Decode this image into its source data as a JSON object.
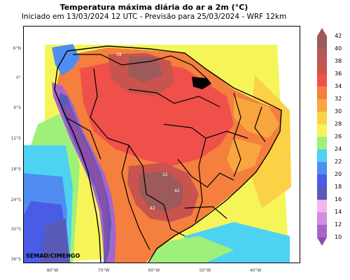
{
  "header": {
    "title": "Temperatura máxima diária do ar a 2m (°C)",
    "subtitle": "Iniciado em 13/03/2024 12 UTC - Previsão para 25/03/2024 - WRF 12km"
  },
  "map": {
    "lat_labels": [
      "6°N",
      "0°",
      "6°S",
      "12°S",
      "18°S",
      "24°S",
      "30°S",
      "36°S"
    ],
    "lon_labels": [
      "80°W",
      "70°W",
      "60°W",
      "50°W",
      "40°W"
    ],
    "credit": "SEMAD/CIMEHGO",
    "contour_labels": [
      "38",
      "32",
      "42",
      "42"
    ]
  },
  "colorbar": {
    "labels": [
      "42",
      "40",
      "38",
      "36",
      "34",
      "32",
      "30",
      "28",
      "26",
      "24",
      "22",
      "20",
      "18",
      "16",
      "14",
      "12",
      "10"
    ],
    "colors": {
      "c10": "#8b4fa8",
      "c12": "#a865c9",
      "c14": "#cf8fe0",
      "c16": "#f1b7e8",
      "c18": "#5a5ab8",
      "c20": "#4a5be6",
      "c22": "#4f8ef0",
      "c24": "#4ed2f2",
      "c26": "#9ef07a",
      "c28": "#f5f55a",
      "c30": "#fbd245",
      "c32": "#f9a640",
      "c34": "#f57f3e",
      "c36": "#f0504a",
      "c38": "#c8544e",
      "c40": "#b35a55",
      "c42": "#9c5a5a"
    }
  }
}
